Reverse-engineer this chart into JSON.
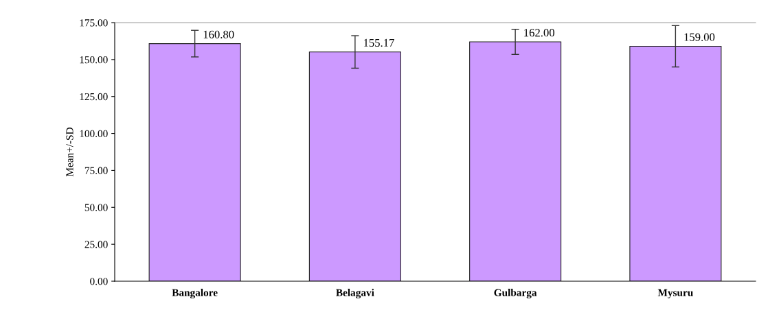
{
  "chart_data": {
    "type": "bar",
    "ylabel": "Mean+/-SD",
    "categories": [
      "Bangalore",
      "Belagavi",
      "Gulbarga",
      "Mysuru"
    ],
    "values": [
      160.8,
      155.17,
      162.0,
      159.0
    ],
    "errors": [
      9,
      11,
      8.5,
      14
    ],
    "value_labels": [
      "160.80",
      "155.17",
      "162.00",
      "159.00"
    ],
    "color": "#cc99ff",
    "ylim": [
      0,
      175
    ],
    "yticks": [
      {
        "value": 0,
        "label": "0.00"
      },
      {
        "value": 25,
        "label": "25.00"
      },
      {
        "value": 50,
        "label": "50.00"
      },
      {
        "value": 75,
        "label": "75.00"
      },
      {
        "value": 100,
        "label": "100.00"
      },
      {
        "value": 125,
        "label": "125.00"
      },
      {
        "value": 150,
        "label": "150.00"
      },
      {
        "value": 175,
        "label": "175.00"
      }
    ],
    "grid": false,
    "legend": false
  }
}
